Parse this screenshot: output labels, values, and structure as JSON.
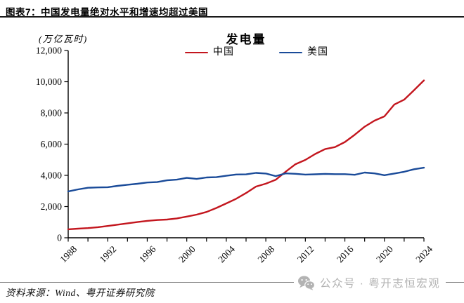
{
  "header": {
    "title": "图表7：中国发电量绝对水平和增速均超过美国"
  },
  "chart": {
    "unit_label": "(万亿瓦时)",
    "title": "发电量"
  },
  "chart_data": {
    "type": "line",
    "title": "发电量",
    "y_unit_label": "(万亿瓦时)",
    "x": [
      1988,
      1989,
      1990,
      1991,
      1992,
      1993,
      1994,
      1995,
      1996,
      1997,
      1998,
      1999,
      2000,
      2001,
      2002,
      2003,
      2004,
      2005,
      2006,
      2007,
      2008,
      2009,
      2010,
      2011,
      2012,
      2013,
      2014,
      2015,
      2016,
      2017,
      2018,
      2019,
      2020,
      2021,
      2022,
      2023,
      2024
    ],
    "series": [
      {
        "name": "中国",
        "color": "#c3161e",
        "values": [
          545,
          585,
          621,
          678,
          754,
          839,
          928,
          1008,
          1081,
          1136,
          1167,
          1239,
          1356,
          1481,
          1654,
          1911,
          2203,
          2500,
          2866,
          3282,
          3467,
          3715,
          4228,
          4713,
          4988,
          5372,
          5680,
          5810,
          6133,
          6604,
          7117,
          7504,
          7779,
          8534,
          8849,
          9456,
          10087
        ]
      },
      {
        "name": "美国",
        "color": "#1a4b99",
        "values": [
          2970,
          3101,
          3203,
          3226,
          3241,
          3327,
          3396,
          3462,
          3540,
          3570,
          3680,
          3725,
          3836,
          3769,
          3867,
          3883,
          3971,
          4055,
          4065,
          4157,
          4119,
          3950,
          4125,
          4100,
          4048,
          4066,
          4094,
          4078,
          4077,
          4035,
          4178,
          4128,
          4007,
          4116,
          4231,
          4390,
          4490
        ]
      }
    ],
    "xlabel": "",
    "ylabel": "",
    "ylim": [
      0,
      12000
    ],
    "xlim": [
      1988,
      2024
    ],
    "ytick_labels": [
      "0",
      "2,000",
      "4,000",
      "6,000",
      "8,000",
      "10,000",
      "12,000"
    ],
    "xtick_labels": [
      "1988",
      "1992",
      "1996",
      "2000",
      "2004",
      "2008",
      "2012",
      "2016",
      "2020",
      "2024"
    ],
    "minor_xtick_step_years": 2,
    "grid": false,
    "legend_position": "top"
  },
  "footer": {
    "source": "资料来源：Wind、粤开证券研究院",
    "watermark": {
      "icon": "wechat-icon",
      "text": "公众号 · 粤开志恒宏观"
    }
  }
}
